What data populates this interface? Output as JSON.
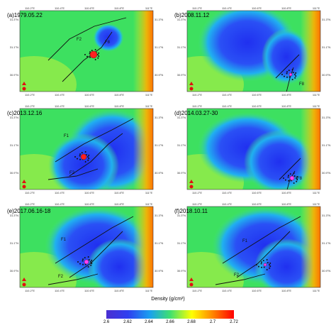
{
  "axes": {
    "lon_ticks": [
      "110.2°E",
      "110.4°E",
      "110.6°E",
      "110.8°E",
      "111°E"
    ],
    "lat_ticks": [
      "31.3°N",
      "31.1°N",
      "30.9°N"
    ]
  },
  "panels": [
    {
      "id": "a",
      "title": "(a)1979.05.22",
      "fault_labels": [
        "F2",
        "F8"
      ]
    },
    {
      "id": "b",
      "title": "(b)2008.11.12",
      "fault_labels": [
        "F8"
      ]
    },
    {
      "id": "c",
      "title": "(c)2013.12.16",
      "fault_labels": [
        "F1",
        "F2"
      ]
    },
    {
      "id": "d",
      "title": "(d)2014.03.27-30",
      "fault_labels": [
        "F8"
      ]
    },
    {
      "id": "e",
      "title": "(e)2017.06.16-18",
      "fault_labels": [
        "F1",
        "F2"
      ]
    },
    {
      "id": "f",
      "title": "(f)2018.10.11",
      "fault_labels": [
        "F1",
        "F2"
      ]
    }
  ],
  "colorbar": {
    "title": "Density (g/cm³)",
    "ticks": [
      "2.6",
      "2.62",
      "2.64",
      "2.66",
      "2.68",
      "2.7",
      "2.72"
    ],
    "min": 2.6,
    "max": 2.72,
    "colors": [
      "#4a2fd1",
      "#2f3ff0",
      "#1aa0f0",
      "#3fe070",
      "#ffff00",
      "#ff8000",
      "#ff0000"
    ]
  }
}
